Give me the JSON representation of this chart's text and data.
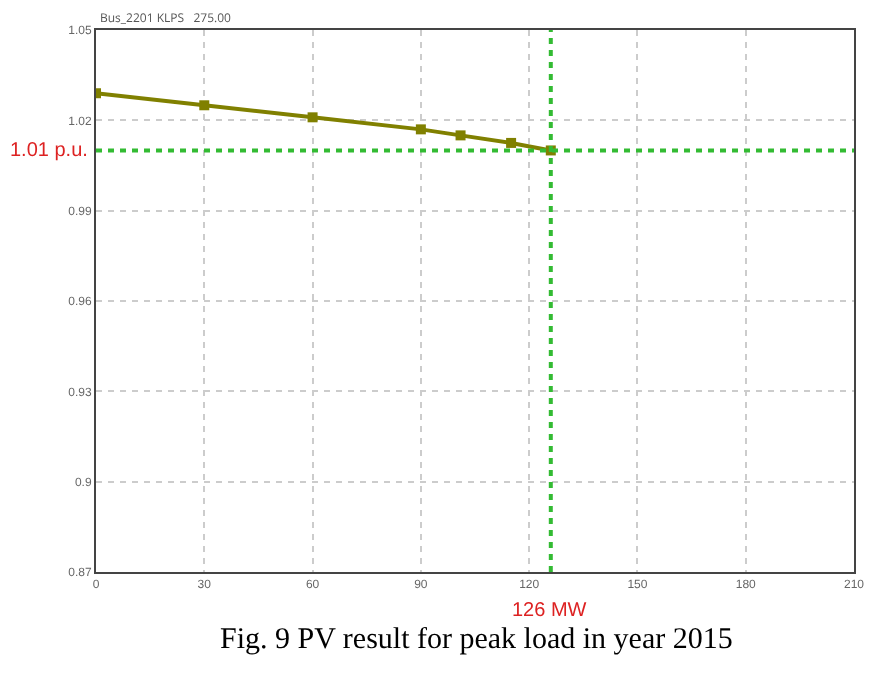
{
  "chart_data": {
    "type": "line",
    "subtitle": "Bus_2201 KLPS   275.00",
    "x": [
      0,
      30,
      60,
      90,
      101,
      115,
      126
    ],
    "series": [
      {
        "color": "#808000",
        "values": [
          1.029,
          1.025,
          1.021,
          1.017,
          1.015,
          1.0125,
          1.01
        ]
      }
    ],
    "marker": "square",
    "line_style": "solid",
    "xlim": [
      0,
      210
    ],
    "xticks": [
      0,
      30,
      60,
      90,
      120,
      150,
      180,
      210
    ],
    "ylim": [
      0.87,
      1.05
    ],
    "yticks": [
      0.87,
      0.9,
      0.93,
      0.96,
      0.99,
      1.02,
      1.05
    ],
    "grid": true,
    "ref_lines": [
      {
        "axis": "y",
        "value": 1.01,
        "label": "1.01 p.u.",
        "color": "#33bb33",
        "line_style": "dotted"
      },
      {
        "axis": "x",
        "value": 126,
        "label": "126 MW",
        "color": "#33bb33",
        "line_style": "dotted"
      }
    ],
    "annotations": [
      "Fig. 9 PV result for peak load in year 2015"
    ]
  }
}
